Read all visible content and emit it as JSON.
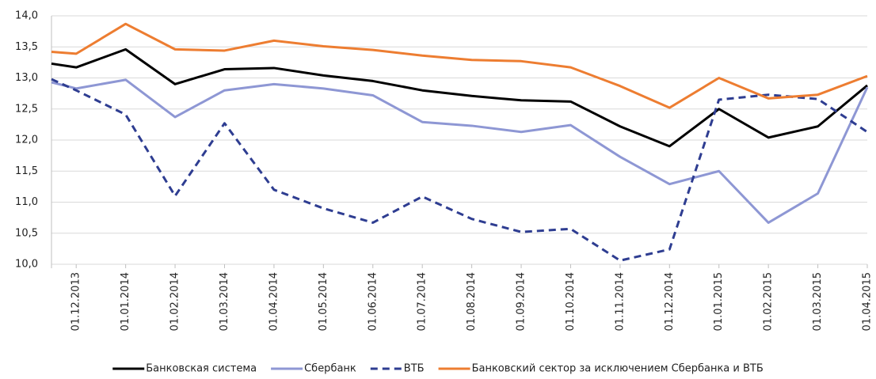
{
  "chart_data": {
    "type": "line",
    "categories": [
      null,
      "01.12.2013",
      "01.01.2014",
      "01.02.2014",
      "01.03.2014",
      "01.04.2014",
      "01.05.2014",
      "01.06.2014",
      "01.07.2014",
      "01.08.2014",
      "01.09.2014",
      "01.10.2014",
      "01.11.2014",
      "01.12.2014",
      "01.01.2015",
      "01.02.2015",
      "01.03.2015",
      "01.04.2015"
    ],
    "series": [
      {
        "name": "Банковская система",
        "color": "#000000",
        "dash": false,
        "values": [
          13.23,
          13.17,
          13.46,
          12.9,
          13.14,
          13.16,
          13.04,
          12.95,
          12.8,
          12.71,
          12.64,
          12.62,
          12.22,
          11.9,
          12.5,
          12.04,
          12.22,
          12.88
        ]
      },
      {
        "name": "Сбербанк",
        "color": "#8e97d4",
        "dash": false,
        "values": [
          12.93,
          12.83,
          12.97,
          12.37,
          12.8,
          12.9,
          12.83,
          12.72,
          12.29,
          12.23,
          12.13,
          12.24,
          11.73,
          11.29,
          11.5,
          10.67,
          11.14,
          12.85
        ]
      },
      {
        "name": "ВТБ",
        "color": "#2e3d91",
        "dash": true,
        "values": [
          12.98,
          12.8,
          12.41,
          11.1,
          12.27,
          11.2,
          10.9,
          10.67,
          11.09,
          10.73,
          10.52,
          10.57,
          10.06,
          10.24,
          12.65,
          12.73,
          12.66,
          12.13
        ]
      },
      {
        "name": "Банковский сектор за исключением Сбербанка и ВТБ",
        "color": "#ed7d31",
        "dash": false,
        "values": [
          13.42,
          13.39,
          13.87,
          13.46,
          13.44,
          13.6,
          13.51,
          13.45,
          13.36,
          13.29,
          13.27,
          13.17,
          12.87,
          12.52,
          13.0,
          12.67,
          12.73,
          13.03
        ]
      }
    ],
    "ylim": [
      10,
      14
    ],
    "yticks": [
      {
        "value": 10,
        "label": "10,0"
      },
      {
        "value": 10.5,
        "label": "10,5"
      },
      {
        "value": 11,
        "label": "11,0"
      },
      {
        "value": 11.5,
        "label": "11,5"
      },
      {
        "value": 12,
        "label": "12,0"
      },
      {
        "value": 12.5,
        "label": "12,5"
      },
      {
        "value": 13,
        "label": "13,0"
      },
      {
        "value": 13.5,
        "label": "13,5"
      },
      {
        "value": 14,
        "label": "14,0"
      }
    ],
    "grid": true,
    "legend": "bottom"
  }
}
